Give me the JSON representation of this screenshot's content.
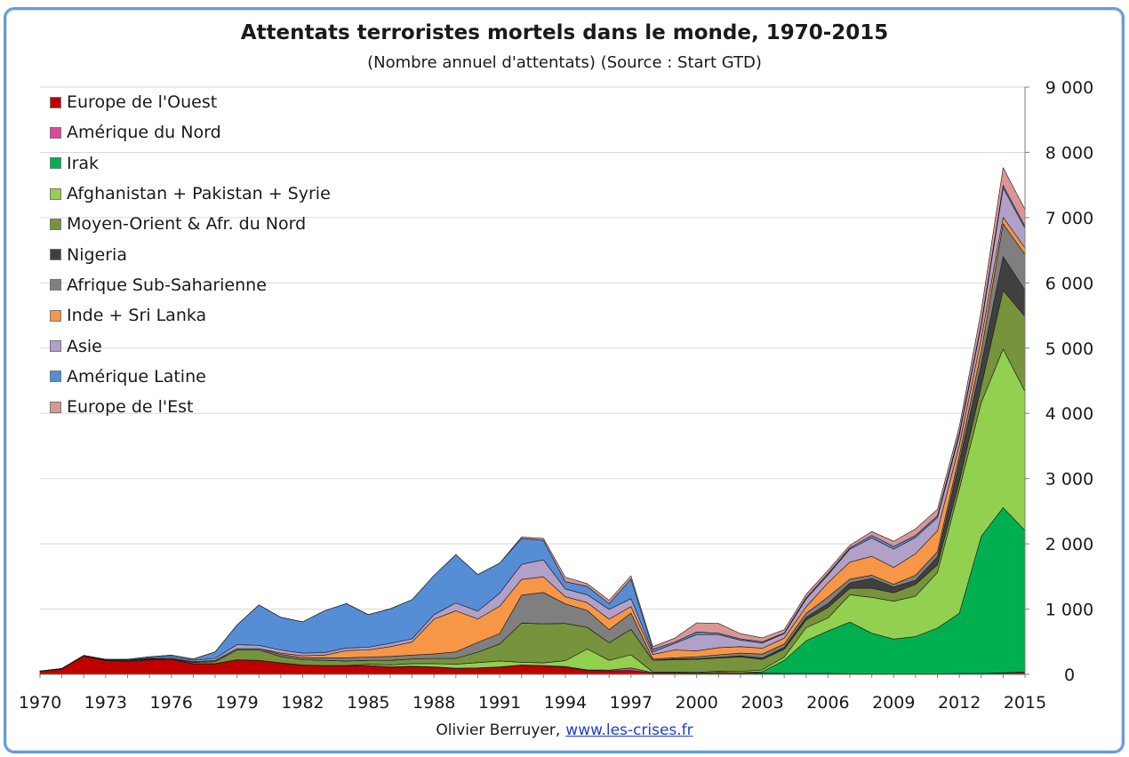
{
  "header": {
    "title": "Attentats terroristes mortels dans le monde, 1970-2015",
    "subtitle": "(Nombre annuel d'attentats) (Source : Start GTD)"
  },
  "footer": {
    "author": "Olivier Berruyer,",
    "link": "www.les-crises.fr"
  },
  "chart_data": {
    "type": "area",
    "stacked": true,
    "x": [
      1970,
      1971,
      1972,
      1973,
      1974,
      1975,
      1976,
      1977,
      1978,
      1979,
      1980,
      1981,
      1982,
      1983,
      1984,
      1985,
      1986,
      1987,
      1988,
      1989,
      1990,
      1991,
      1992,
      1993,
      1994,
      1995,
      1996,
      1997,
      1998,
      1999,
      2000,
      2001,
      2002,
      2003,
      2004,
      2005,
      2006,
      2007,
      2008,
      2009,
      2010,
      2011,
      2012,
      2013,
      2014,
      2015
    ],
    "xlim": [
      1970,
      2015
    ],
    "x_ticks": [
      "1970",
      "1973",
      "1976",
      "1979",
      "1982",
      "1985",
      "1988",
      "1991",
      "1994",
      "1997",
      "2000",
      "2003",
      "2006",
      "2009",
      "2012",
      "2015"
    ],
    "y_ticks": [
      "0",
      "1 000",
      "2 000",
      "3 000",
      "4 000",
      "5 000",
      "6 000",
      "7 000",
      "8 000",
      "9 000"
    ],
    "ylim": [
      0,
      9000
    ],
    "y_axis_side": "right",
    "grid": true,
    "legend_position": "top-left",
    "series": [
      {
        "name": "Europe de l'Ouest",
        "color": "#c00000",
        "values": [
          45,
          80,
          280,
          210,
          200,
          220,
          230,
          160,
          160,
          220,
          210,
          170,
          140,
          130,
          130,
          130,
          110,
          120,
          110,
          90,
          95,
          110,
          140,
          130,
          110,
          60,
          55,
          60,
          20,
          20,
          15,
          25,
          20,
          15,
          10,
          10,
          10,
          5,
          5,
          5,
          5,
          5,
          10,
          10,
          20,
          30
        ]
      },
      {
        "name": "Amérique du Nord",
        "color": "#e0489a",
        "values": [
          5,
          10,
          10,
          10,
          10,
          10,
          5,
          5,
          5,
          5,
          5,
          5,
          5,
          5,
          5,
          5,
          5,
          5,
          5,
          5,
          5,
          5,
          5,
          5,
          10,
          10,
          10,
          40,
          5,
          5,
          5,
          5,
          5,
          5,
          5,
          5,
          5,
          5,
          5,
          5,
          5,
          5,
          5,
          5,
          5,
          5
        ]
      },
      {
        "name": "Irak",
        "color": "#00b050",
        "values": [
          0,
          0,
          0,
          0,
          0,
          0,
          0,
          0,
          0,
          0,
          0,
          0,
          0,
          0,
          0,
          0,
          0,
          0,
          0,
          0,
          0,
          0,
          0,
          0,
          0,
          0,
          0,
          0,
          0,
          0,
          0,
          0,
          0,
          20,
          200,
          500,
          650,
          790,
          620,
          530,
          570,
          700,
          920,
          2100,
          2530,
          2170
        ]
      },
      {
        "name": "Afghanistan + Pakistan + Syrie",
        "color": "#92d050",
        "values": [
          0,
          0,
          0,
          0,
          0,
          0,
          0,
          0,
          0,
          0,
          0,
          0,
          0,
          0,
          0,
          20,
          30,
          40,
          50,
          60,
          80,
          90,
          40,
          40,
          90,
          320,
          150,
          200,
          10,
          10,
          10,
          20,
          20,
          30,
          50,
          200,
          200,
          420,
          550,
          580,
          620,
          850,
          1900,
          2050,
          2430,
          2130
        ]
      },
      {
        "name": "Moyen-Orient & Afr. du Nord",
        "color": "#77933c",
        "values": [
          0,
          0,
          0,
          0,
          0,
          0,
          0,
          20,
          30,
          150,
          160,
          100,
          80,
          80,
          70,
          60,
          70,
          70,
          80,
          90,
          160,
          260,
          600,
          600,
          570,
          330,
          270,
          390,
          180,
          190,
          200,
          200,
          220,
          160,
          120,
          120,
          160,
          100,
          140,
          130,
          180,
          120,
          120,
          250,
          900,
          1150
        ]
      },
      {
        "name": "Nigeria",
        "color": "#404040",
        "values": [
          0,
          0,
          0,
          0,
          0,
          0,
          0,
          0,
          0,
          0,
          0,
          0,
          0,
          0,
          0,
          0,
          0,
          0,
          0,
          0,
          0,
          0,
          0,
          0,
          0,
          0,
          0,
          0,
          0,
          10,
          10,
          10,
          20,
          20,
          30,
          40,
          60,
          80,
          150,
          90,
          60,
          120,
          300,
          330,
          520,
          400
        ]
      },
      {
        "name": "Afrique Sub-Saharienne",
        "color": "#7f7f7f",
        "values": [
          0,
          0,
          0,
          0,
          0,
          10,
          10,
          10,
          20,
          20,
          20,
          30,
          30,
          40,
          50,
          50,
          60,
          60,
          70,
          100,
          150,
          160,
          430,
          480,
          300,
          260,
          200,
          250,
          20,
          20,
          30,
          40,
          40,
          60,
          50,
          60,
          100,
          60,
          50,
          40,
          80,
          80,
          100,
          200,
          500,
          550
        ]
      },
      {
        "name": "Inde + Sri Lanka",
        "color": "#f79646",
        "values": [
          0,
          0,
          0,
          0,
          0,
          0,
          0,
          0,
          0,
          0,
          0,
          20,
          30,
          40,
          110,
          110,
          150,
          200,
          530,
          630,
          360,
          420,
          240,
          240,
          110,
          120,
          160,
          100,
          70,
          120,
          90,
          110,
          100,
          90,
          90,
          100,
          220,
          260,
          290,
          260,
          330,
          320,
          160,
          200,
          100,
          100
        ]
      },
      {
        "name": "Asie",
        "color": "#b1a0c7",
        "values": [
          0,
          0,
          0,
          10,
          10,
          10,
          20,
          20,
          30,
          60,
          50,
          50,
          40,
          40,
          40,
          40,
          50,
          50,
          70,
          120,
          120,
          200,
          230,
          260,
          120,
          120,
          150,
          120,
          40,
          100,
          250,
          200,
          100,
          80,
          70,
          120,
          120,
          200,
          280,
          280,
          250,
          200,
          150,
          200,
          450,
          300
        ]
      },
      {
        "name": "Amérique Latine",
        "color": "#558ed5",
        "values": [
          0,
          0,
          0,
          0,
          10,
          20,
          30,
          20,
          100,
          300,
          620,
          500,
          480,
          640,
          680,
          500,
          530,
          600,
          600,
          740,
          560,
          460,
          400,
          300,
          110,
          130,
          90,
          300,
          40,
          20,
          40,
          20,
          20,
          20,
          10,
          20,
          20,
          20,
          40,
          40,
          30,
          30,
          30,
          30,
          40,
          30
        ]
      },
      {
        "name": "Europe de l'Est",
        "color": "#da9694",
        "values": [
          0,
          0,
          0,
          0,
          0,
          0,
          0,
          0,
          0,
          0,
          0,
          0,
          0,
          0,
          0,
          0,
          0,
          0,
          0,
          0,
          0,
          0,
          20,
          30,
          70,
          40,
          50,
          50,
          40,
          60,
          140,
          150,
          80,
          60,
          50,
          50,
          50,
          40,
          60,
          80,
          100,
          100,
          100,
          200,
          270,
          260
        ]
      }
    ]
  }
}
